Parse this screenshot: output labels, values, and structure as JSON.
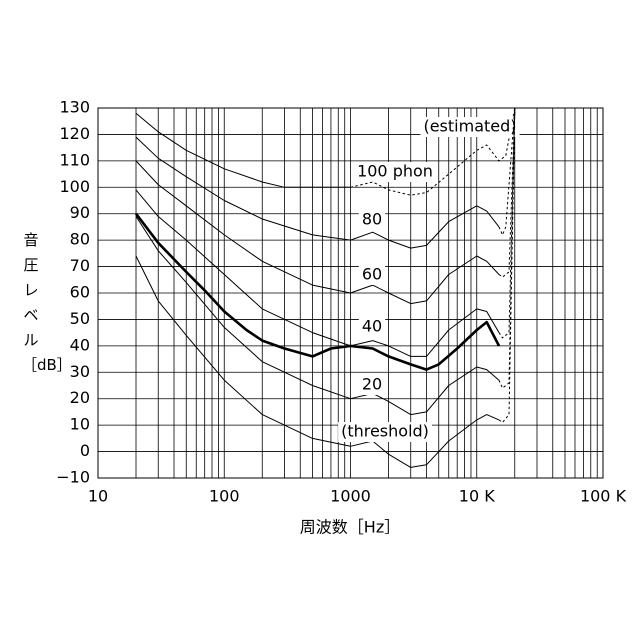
{
  "chart_data": {
    "type": "line",
    "xlabel": "周波数［Hz］",
    "ylabel": "音圧レベル［dB］",
    "xscale": "log",
    "xlim": [
      10,
      100000
    ],
    "ylim": [
      -10,
      130
    ],
    "xticks": [
      10,
      100,
      1000,
      {
        "value": 10000,
        "label": "10 K"
      },
      {
        "value": 100000,
        "label": "100 K"
      }
    ],
    "xminorticks": [
      20,
      30,
      40,
      50,
      60,
      70,
      80,
      90,
      200,
      300,
      400,
      500,
      600,
      700,
      800,
      900,
      2000,
      3000,
      4000,
      5000,
      6000,
      7000,
      8000,
      9000,
      20000,
      30000,
      40000,
      50000,
      60000,
      70000,
      80000,
      90000
    ],
    "yticks": [
      {
        "value": -10,
        "label": "−10"
      },
      0,
      10,
      20,
      30,
      40,
      50,
      60,
      70,
      80,
      90,
      100,
      110,
      120,
      130
    ],
    "grid": true,
    "series": [
      {
        "name": "100 phon",
        "color": "#000",
        "x": [
          20,
          30,
          50,
          100,
          200,
          300,
          500,
          1000
        ],
        "values": [
          128,
          121,
          114,
          107,
          102,
          100,
          100,
          100
        ]
      },
      {
        "name": "(estimated)",
        "color": "#000",
        "dashed": true,
        "x": [
          1000,
          1500,
          2000,
          3000,
          4000,
          6000,
          10000,
          12000,
          15000,
          17000,
          20000
        ],
        "values": [
          100,
          102,
          99,
          97,
          98,
          105,
          114,
          116,
          110,
          112,
          130
        ]
      },
      {
        "name": "80",
        "color": "#000",
        "x": [
          20,
          30,
          50,
          100,
          200,
          500,
          1000,
          1500,
          2000,
          3000,
          4000,
          6000,
          10000,
          12000,
          15000
        ],
        "values": [
          119,
          111,
          104,
          95,
          88,
          82,
          80,
          83,
          80,
          77,
          78,
          87,
          93,
          91,
          85
        ]
      },
      {
        "color": "#000",
        "dashed": true,
        "x": [
          15000,
          16000,
          17000,
          20000
        ],
        "values": [
          85,
          82,
          85,
          130
        ]
      },
      {
        "name": "60",
        "color": "#000",
        "x": [
          20,
          30,
          50,
          100,
          200,
          500,
          1000,
          1500,
          2000,
          3000,
          4000,
          6000,
          10000,
          12000,
          15000
        ],
        "values": [
          110,
          101,
          93,
          82,
          72,
          63,
          60,
          63,
          60,
          56,
          57,
          67,
          74,
          72,
          67
        ]
      },
      {
        "color": "#000",
        "dashed": true,
        "x": [
          15000,
          16000,
          18000,
          20000
        ],
        "values": [
          67,
          66,
          68,
          130
        ]
      },
      {
        "name": "40",
        "color": "#000",
        "x": [
          20,
          30,
          50,
          100,
          200,
          500,
          1000,
          1500,
          2000,
          3000,
          4000,
          6000,
          10000,
          12000,
          15000
        ],
        "values": [
          99,
          89,
          80,
          67,
          54,
          45,
          40,
          42,
          40,
          36,
          36,
          46,
          54,
          53,
          45
        ]
      },
      {
        "color": "#000",
        "dashed": true,
        "x": [
          15000,
          16000,
          18000,
          20000
        ],
        "values": [
          45,
          43,
          45,
          130
        ]
      },
      {
        "name": "20",
        "color": "#000",
        "x": [
          20,
          30,
          50,
          100,
          200,
          500,
          1000,
          1500,
          2000,
          3000,
          4000,
          6000,
          10000,
          12000,
          15000
        ],
        "values": [
          89,
          76,
          64,
          47,
          34,
          25,
          20,
          22,
          19,
          14,
          15,
          25,
          32,
          31,
          27
        ]
      },
      {
        "color": "#000",
        "dashed": true,
        "x": [
          15000,
          16000,
          18000,
          20000
        ],
        "values": [
          27,
          24,
          26,
          130
        ]
      },
      {
        "name": "(threshold)",
        "color": "#000",
        "x": [
          20,
          30,
          50,
          100,
          200,
          500,
          1000,
          1500,
          2000,
          3000,
          4000,
          6000,
          10000,
          12000,
          15000
        ],
        "values": [
          74,
          57,
          44,
          27,
          14,
          5,
          2,
          4,
          -1,
          -6,
          -5,
          4,
          12,
          14,
          12
        ]
      },
      {
        "color": "#000",
        "dashed": true,
        "x": [
          15000,
          16000,
          18000,
          20000
        ],
        "values": [
          12,
          11,
          14,
          130
        ]
      },
      {
        "color": "#000",
        "bold": true,
        "x": [
          20,
          30,
          50,
          70,
          100,
          150,
          200,
          300,
          500,
          700,
          1000,
          1500,
          2000,
          3000,
          4000,
          5000,
          7000,
          10000,
          12000,
          15000
        ],
        "values": [
          90,
          79,
          68,
          61,
          53,
          46,
          42,
          39,
          36,
          39,
          40,
          39,
          36,
          33,
          31,
          33,
          39,
          46,
          49,
          40
        ]
      }
    ]
  }
}
